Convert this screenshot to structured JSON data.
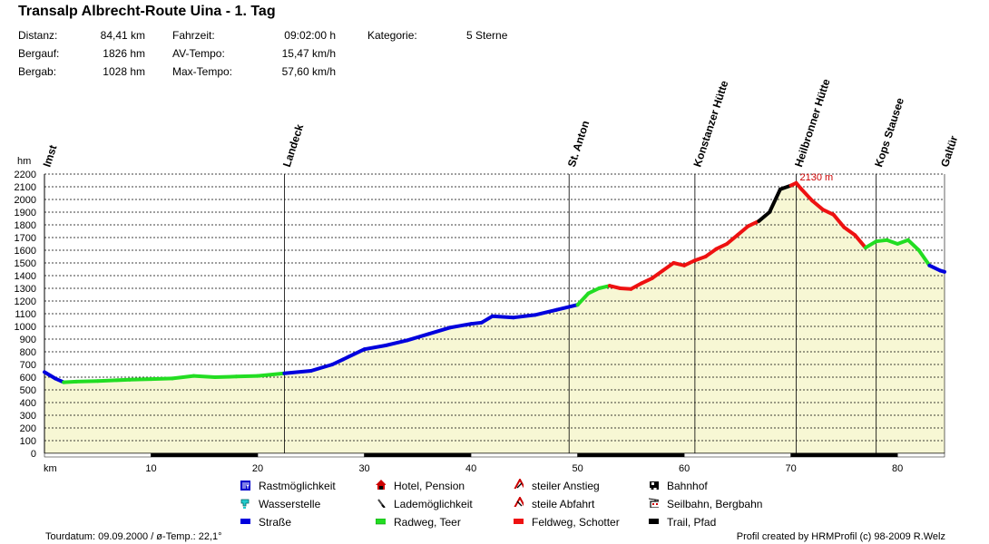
{
  "header": {
    "title": "Transalp Albrecht-Route Uina - 1. Tag",
    "stats": [
      {
        "label": "Distanz:",
        "value": "84,41 km"
      },
      {
        "label": "Bergauf:",
        "value": "1826 hm"
      },
      {
        "label": "Bergab:",
        "value": "1028 hm"
      },
      {
        "label": "Fahrzeit:",
        "value": "09:02:00 h"
      },
      {
        "label": "AV-Tempo:",
        "value": "15,47 km/h"
      },
      {
        "label": "Max-Tempo:",
        "value": "57,60 km/h"
      },
      {
        "label": "Kategorie:",
        "value": "5 Sterne"
      }
    ]
  },
  "chart_data": {
    "type": "area",
    "ylabel": "hm",
    "xlabel": "km",
    "xlim": [
      0,
      84.41
    ],
    "ylim": [
      0,
      2200
    ],
    "y_ticks": [
      0,
      100,
      200,
      300,
      400,
      500,
      600,
      700,
      800,
      900,
      1000,
      1100,
      1200,
      1300,
      1400,
      1500,
      1600,
      1700,
      1800,
      1900,
      2000,
      2100,
      2200
    ],
    "x_ticks": [
      10,
      20,
      30,
      40,
      50,
      60,
      70,
      80
    ],
    "grid": true,
    "fill_color": "#f7f7d4",
    "profile": [
      [
        0,
        640,
        "road"
      ],
      [
        1,
        590,
        "road"
      ],
      [
        1.8,
        560,
        "road"
      ],
      [
        3,
        565,
        "cycle"
      ],
      [
        5,
        570,
        "cycle"
      ],
      [
        8,
        580,
        "cycle"
      ],
      [
        10,
        585,
        "cycle"
      ],
      [
        12,
        590,
        "cycle"
      ],
      [
        14,
        610,
        "cycle"
      ],
      [
        16,
        600,
        "cycle"
      ],
      [
        18,
        605,
        "cycle"
      ],
      [
        20,
        610,
        "cycle"
      ],
      [
        22.5,
        630,
        "cycle"
      ],
      [
        25,
        650,
        "road"
      ],
      [
        27,
        700,
        "road"
      ],
      [
        28,
        740,
        "road"
      ],
      [
        30,
        820,
        "road"
      ],
      [
        32,
        850,
        "road"
      ],
      [
        34,
        890,
        "road"
      ],
      [
        36,
        940,
        "road"
      ],
      [
        38,
        990,
        "road"
      ],
      [
        40,
        1020,
        "road"
      ],
      [
        41,
        1030,
        "road"
      ],
      [
        42,
        1080,
        "road"
      ],
      [
        44,
        1070,
        "road"
      ],
      [
        46,
        1090,
        "road"
      ],
      [
        48,
        1130,
        "road"
      ],
      [
        50,
        1170,
        "road"
      ],
      [
        51,
        1260,
        "cycle"
      ],
      [
        52,
        1300,
        "cycle"
      ],
      [
        53,
        1320,
        "cycle"
      ],
      [
        54,
        1300,
        "field"
      ],
      [
        55,
        1295,
        "field"
      ],
      [
        56,
        1340,
        "field"
      ],
      [
        57,
        1380,
        "field"
      ],
      [
        58,
        1440,
        "field"
      ],
      [
        59,
        1500,
        "field"
      ],
      [
        60,
        1480,
        "field"
      ],
      [
        61,
        1520,
        "field"
      ],
      [
        62,
        1550,
        "field"
      ],
      [
        63,
        1610,
        "field"
      ],
      [
        64,
        1650,
        "field"
      ],
      [
        65,
        1720,
        "field"
      ],
      [
        66,
        1790,
        "field"
      ],
      [
        67,
        1830,
        "field"
      ],
      [
        68,
        1900,
        "trail"
      ],
      [
        69,
        2080,
        "trail"
      ],
      [
        70,
        2110,
        "trail"
      ],
      [
        70.5,
        2130,
        "field"
      ],
      [
        71,
        2080,
        "field"
      ],
      [
        72,
        1990,
        "field"
      ],
      [
        73,
        1920,
        "field"
      ],
      [
        74,
        1880,
        "field"
      ],
      [
        75,
        1780,
        "field"
      ],
      [
        76,
        1720,
        "field"
      ],
      [
        77,
        1620,
        "field"
      ],
      [
        78,
        1670,
        "cycle"
      ],
      [
        79,
        1680,
        "cycle"
      ],
      [
        80,
        1650,
        "cycle"
      ],
      [
        81,
        1680,
        "cycle"
      ],
      [
        82,
        1600,
        "cycle"
      ],
      [
        83,
        1480,
        "cycle"
      ],
      [
        84,
        1440,
        "road"
      ],
      [
        84.41,
        1430,
        "road"
      ]
    ],
    "waypoints": [
      {
        "name": "Imst",
        "km": 0
      },
      {
        "name": "Landeck",
        "km": 22.5
      },
      {
        "name": "St. Anton",
        "km": 49.2
      },
      {
        "name": "Konstanzer Hütte",
        "km": 61
      },
      {
        "name": "Heilbronner Hütte",
        "km": 70.5
      },
      {
        "name": "Kops Stausee",
        "km": 78
      },
      {
        "name": "Galtür",
        "km": 84.2
      }
    ],
    "annotations": [
      {
        "text": "2130 m",
        "km": 70.5,
        "alt": 2130
      }
    ],
    "surface_colors": {
      "road": "#0000dd",
      "cycle": "#22dd22",
      "field": "#ee1111",
      "trail": "#000000"
    },
    "axis_band": [
      {
        "from": 0,
        "to": 10,
        "color": "white"
      },
      {
        "from": 10,
        "to": 20,
        "color": "black"
      },
      {
        "from": 20,
        "to": 30,
        "color": "white"
      },
      {
        "from": 30,
        "to": 40,
        "color": "black"
      },
      {
        "from": 40,
        "to": 50,
        "color": "white"
      },
      {
        "from": 50,
        "to": 60,
        "color": "black"
      },
      {
        "from": 60,
        "to": 70,
        "color": "white"
      },
      {
        "from": 70,
        "to": 80,
        "color": "black"
      },
      {
        "from": 80,
        "to": 84.41,
        "color": "white"
      }
    ]
  },
  "legend": {
    "items": [
      {
        "label": "Rastmöglichkeit",
        "icon": "rest-icon",
        "color": "#0000cc"
      },
      {
        "label": "Wasserstelle",
        "icon": "water-icon",
        "color": "#22cccc"
      },
      {
        "label": "Straße",
        "icon": "road-icon",
        "color": "#0000dd"
      },
      {
        "label": "Hotel, Pension",
        "icon": "hotel-icon",
        "color": "#cc0000"
      },
      {
        "label": "Lademöglichkeit",
        "icon": "charging-icon",
        "color": "#444444"
      },
      {
        "label": "Radweg, Teer",
        "icon": "cycle-path-icon",
        "color": "#22dd22"
      },
      {
        "label": "steiler Anstieg",
        "icon": "steep-climb-icon",
        "color": "#cc0000"
      },
      {
        "label": "steile Abfahrt",
        "icon": "steep-descent-icon",
        "color": "#cc0000"
      },
      {
        "label": "Feldweg, Schotter",
        "icon": "gravel-icon",
        "color": "#ee1111"
      },
      {
        "label": "Bahnhof",
        "icon": "train-icon",
        "color": "#000000"
      },
      {
        "label": "Seilbahn, Bergbahn",
        "icon": "cable-car-icon",
        "color": "#000000"
      },
      {
        "label": "Trail, Pfad",
        "icon": "trail-icon",
        "color": "#000000"
      }
    ]
  },
  "footer": {
    "left": "Tourdatum: 09.09.2000  /  ø-Temp.: 22,1°",
    "right": "Profil created by HRMProfil (c) 98-2009 R.Welz"
  }
}
